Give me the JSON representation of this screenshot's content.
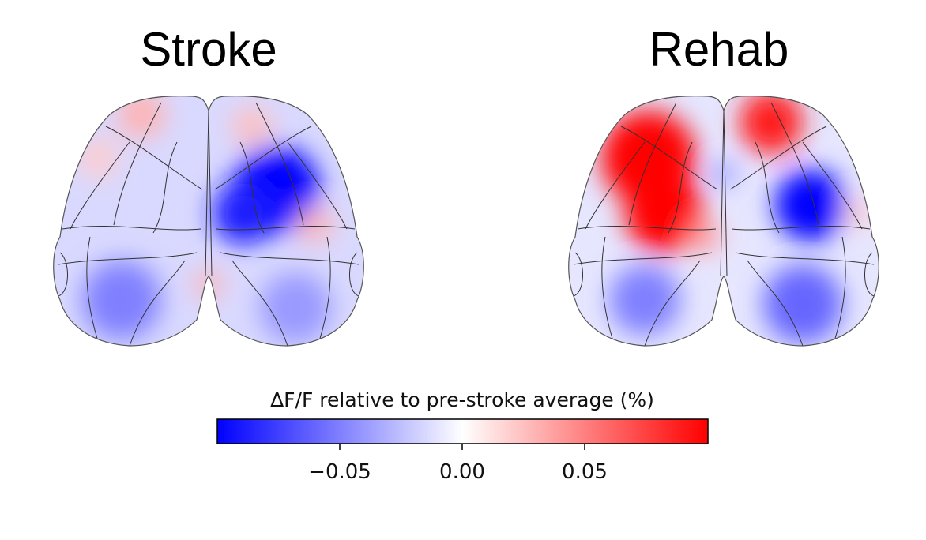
{
  "chart_data": {
    "type": "heatmap",
    "panels": [
      {
        "title": "Stroke",
        "blobs": [
          {
            "id": "base",
            "value": -0.015
          },
          {
            "id": "r-ant-lat",
            "value": -0.1
          },
          {
            "id": "r-ant-med",
            "value": -0.09
          },
          {
            "id": "l-front",
            "value": 0.03
          },
          {
            "id": "r-front",
            "value": 0.025
          },
          {
            "id": "r-lat",
            "value": 0.03
          },
          {
            "id": "mid-post",
            "value": 0.03
          },
          {
            "id": "l-post",
            "value": -0.05
          },
          {
            "id": "r-post",
            "value": -0.04
          },
          {
            "id": "l-ant-lat",
            "value": 0.02
          }
        ]
      },
      {
        "title": "Rehab",
        "blobs": [
          {
            "id": "base",
            "value": -0.01
          },
          {
            "id": "l-ant",
            "value": 0.1
          },
          {
            "id": "l-mid",
            "value": 0.1
          },
          {
            "id": "r-front",
            "value": 0.09
          },
          {
            "id": "r-ant-lat",
            "value": -0.1
          },
          {
            "id": "mid-post",
            "value": 0.04
          },
          {
            "id": "mid-ant",
            "value": -0.05
          },
          {
            "id": "l-post",
            "value": -0.05
          },
          {
            "id": "r-post",
            "value": -0.06
          },
          {
            "id": "r-lat",
            "value": 0.02
          }
        ]
      }
    ],
    "colorbar": {
      "label": "ΔF/F relative to pre-stroke average (%)",
      "range": [
        -0.1,
        0.1
      ],
      "ticks": [
        -0.05,
        0.0,
        0.05
      ],
      "tick_labels": [
        "−0.05",
        "0.00",
        "0.05"
      ],
      "colormap": "bwr",
      "colors": {
        "low": "#0000ff",
        "mid": "#ffffff",
        "high": "#ff0000"
      }
    }
  }
}
